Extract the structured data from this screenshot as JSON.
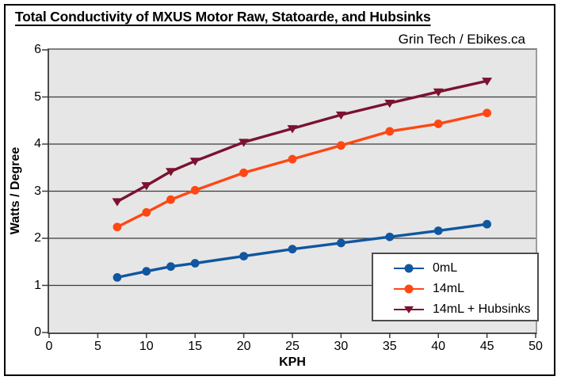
{
  "title": "Total Conductivity of MXUS Motor Raw, Statoarde, and Hubsinks",
  "attribution": "Grin Tech / Ebikes.ca",
  "chart_data": {
    "type": "line",
    "title": "Total Conductivity of MXUS Motor Raw, Statoarde, and Hubsinks",
    "annotation": "Grin Tech / Ebikes.ca",
    "xlabel": "KPH",
    "ylabel": "Watts / Degree",
    "xlim": [
      0,
      50
    ],
    "ylim": [
      0,
      6
    ],
    "x_ticks": [
      0,
      5,
      10,
      15,
      20,
      25,
      30,
      35,
      40,
      45,
      50
    ],
    "y_ticks": [
      0,
      1,
      2,
      3,
      4,
      5,
      6
    ],
    "grid": true,
    "plot_bg": "#E6E6E6",
    "grid_color": "#3C3C3C",
    "legend_position": "inside bottom-right",
    "x": [
      7,
      10,
      12.5,
      15,
      20,
      25,
      30,
      35,
      40,
      45
    ],
    "series": [
      {
        "name": "0mL",
        "color": "#1056A0",
        "marker": "circle",
        "values": [
          1.17,
          1.3,
          1.4,
          1.47,
          1.62,
          1.77,
          1.9,
          2.03,
          2.16,
          2.3
        ]
      },
      {
        "name": "14mL",
        "color": "#FF4713",
        "marker": "circle",
        "values": [
          2.24,
          2.55,
          2.82,
          3.02,
          3.39,
          3.68,
          3.97,
          4.27,
          4.43,
          4.66
        ]
      },
      {
        "name": "14mL + Hubsinks",
        "color": "#7A1230",
        "marker": "triangle-down",
        "values": [
          2.78,
          3.12,
          3.42,
          3.64,
          4.04,
          4.33,
          4.62,
          4.87,
          5.11,
          5.34
        ]
      }
    ]
  }
}
